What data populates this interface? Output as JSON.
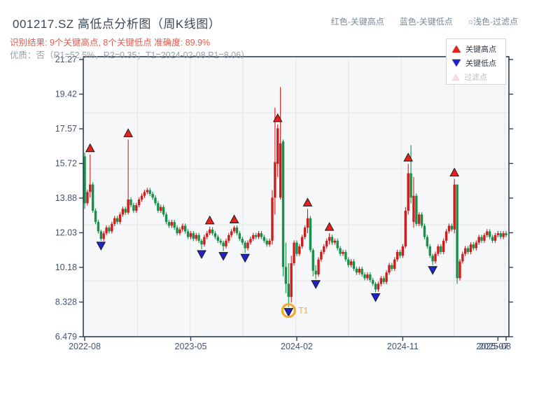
{
  "header": {
    "title": "001217.SZ 高低点分析图（周K线图）",
    "result_line": "识别结果: 9个关键高点, 8个关键低点  准确度: 89.9%",
    "quality_line": "优质：否（R1=52.5%，R2=0.35；T1=2024-02-08 P1=8.06）",
    "legend_high": "红色-关键高点",
    "legend_low": "蓝色-关键低点",
    "legend_filtered": "○浅色-过滤点"
  },
  "legend_box": {
    "high": "关键高点",
    "low": "关键低点",
    "filtered": "过滤点"
  },
  "colors": {
    "title_text": "#3d4856",
    "result_text": "#e25b4e",
    "quality_text": "#9ba1a8",
    "header_legend_text": "#7c8a93",
    "axis": "#2f3e50",
    "axis_label": "#46526e",
    "grid": "#e3e4e8",
    "plot_bg": "#f6f7f9",
    "candle_up": "#cf1d1d",
    "candle_down": "#169149",
    "marker_high": "#e8211b",
    "marker_low": "#2222cc",
    "marker_edge": "#1a1a1a",
    "annotation_orange": "#f5a62a"
  },
  "chart_data": {
    "type": "candlestick",
    "period": "weekly",
    "symbol": "001217.SZ",
    "y_ticks": [
      "21.27",
      "19.42",
      "17.57",
      "15.72",
      "13.88",
      "12.03",
      "10.18",
      "8.328",
      "6.479"
    ],
    "ylim": [
      6.479,
      21.27
    ],
    "x_ticks": [
      {
        "label": "2022-08",
        "week": 0
      },
      {
        "label": "2023-05",
        "week": 39
      },
      {
        "label": "2024-02",
        "week": 78
      },
      {
        "label": "2024-11",
        "week": 117
      },
      {
        "label": "2025-07",
        "week": 152
      },
      {
        "label": "2025-08",
        "week": 155
      }
    ],
    "closes": [
      13.6,
      14.2,
      14.6,
      13.2,
      12.6,
      12.1,
      11.7,
      12.0,
      12.3,
      12.1,
      12.5,
      12.8,
      12.6,
      13.0,
      13.3,
      13.1,
      13.8,
      13.5,
      13.2,
      13.5,
      13.8,
      14.0,
      14.2,
      14.3,
      14.1,
      13.9,
      13.6,
      13.2,
      13.4,
      13.0,
      12.6,
      12.4,
      12.6,
      12.3,
      12.0,
      12.2,
      12.4,
      12.1,
      11.8,
      12.0,
      11.7,
      11.9,
      11.6,
      11.4,
      11.8,
      12.0,
      12.2,
      12.0,
      11.8,
      11.6,
      11.5,
      11.3,
      11.6,
      11.9,
      12.1,
      12.3,
      12.0,
      11.7,
      11.5,
      11.2,
      11.5,
      11.7,
      11.9,
      11.8,
      12.0,
      11.8,
      11.6,
      11.4,
      11.6,
      13.9,
      15.8,
      17.6,
      16.8,
      10.2,
      9.3,
      8.6,
      10.4,
      11.5,
      10.9,
      11.3,
      11.8,
      12.3,
      12.8,
      11.1,
      10.0,
      9.8,
      10.6,
      11.0,
      11.3,
      11.6,
      11.8,
      11.5,
      11.6,
      11.2,
      10.9,
      11.0,
      10.6,
      10.3,
      10.5,
      10.1,
      9.9,
      10.1,
      9.8,
      9.6,
      9.8,
      9.5,
      9.3,
      9.0,
      9.3,
      9.6,
      9.4,
      9.9,
      10.3,
      10.1,
      10.6,
      11.0,
      10.8,
      11.3,
      13.2,
      15.2,
      13.9,
      14.0,
      12.5,
      13.0,
      12.4,
      11.8,
      11.3,
      10.8,
      10.5,
      10.9,
      11.3,
      11.0,
      11.6,
      12.1,
      12.4,
      12.2,
      14.6,
      9.6,
      10.5,
      10.9,
      11.2,
      11.0,
      11.4,
      11.2,
      11.5,
      11.8,
      11.6,
      11.9,
      12.1,
      11.8,
      11.6,
      11.9,
      12.0,
      11.8,
      12.0,
      11.9
    ],
    "ohlc_overrides": {
      "0": [
        16.1,
        16.3,
        13.3,
        13.6
      ],
      "2": [
        14.2,
        16.2,
        13.9,
        14.6
      ],
      "6": [
        12.1,
        12.2,
        11.6,
        11.7
      ],
      "16": [
        13.1,
        17.0,
        13.0,
        13.8
      ],
      "43": [
        11.6,
        11.7,
        11.15,
        11.4
      ],
      "46": [
        12.0,
        12.35,
        11.9,
        12.2
      ],
      "51": [
        11.5,
        11.6,
        11.05,
        11.3
      ],
      "55": [
        12.1,
        12.4,
        12.0,
        12.3
      ],
      "59": [
        11.5,
        11.6,
        10.95,
        11.2
      ],
      "69": [
        11.6,
        14.3,
        11.4,
        13.9
      ],
      "70": [
        13.9,
        18.7,
        13.0,
        15.8
      ],
      "71": [
        15.7,
        17.8,
        15.0,
        17.6
      ],
      "72": [
        13.9,
        19.8,
        13.8,
        16.8
      ],
      "73": [
        16.9,
        17.0,
        9.7,
        10.2
      ],
      "74": [
        10.2,
        11.5,
        8.8,
        9.3
      ],
      "75": [
        9.3,
        10.4,
        8.06,
        8.6
      ],
      "76": [
        8.6,
        10.8,
        8.3,
        10.4
      ],
      "82": [
        12.3,
        13.3,
        12.0,
        12.8
      ],
      "84": [
        11.1,
        11.2,
        9.7,
        10.0
      ],
      "85": [
        10.0,
        10.3,
        9.55,
        9.8
      ],
      "90": [
        11.6,
        12.0,
        11.4,
        11.8
      ],
      "107": [
        9.3,
        9.4,
        8.85,
        9.0
      ],
      "118": [
        11.3,
        13.4,
        11.2,
        13.2
      ],
      "119": [
        13.2,
        15.7,
        13.0,
        15.2
      ],
      "120": [
        15.2,
        16.7,
        13.6,
        13.9
      ],
      "121": [
        12.6,
        15.0,
        12.3,
        14.0
      ],
      "128": [
        10.8,
        10.9,
        10.3,
        10.5
      ],
      "136": [
        12.2,
        14.9,
        12.0,
        14.6
      ],
      "137": [
        14.6,
        14.6,
        9.3,
        9.6
      ]
    },
    "key_high_weeks": [
      2,
      16,
      46,
      55,
      71,
      82,
      90,
      119,
      136
    ],
    "key_low_weeks": [
      6,
      43,
      51,
      59,
      75,
      85,
      107,
      128
    ],
    "key_high_count": 9,
    "key_low_count": 8,
    "accuracy": "89.9%",
    "annotation": {
      "label": "T1",
      "week": 75,
      "price": 8.06,
      "date": "2024-02-08"
    }
  }
}
